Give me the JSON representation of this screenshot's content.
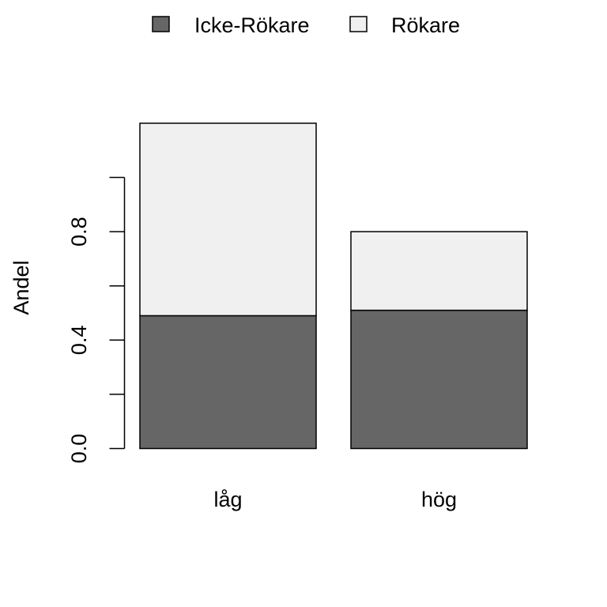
{
  "chart_data": {
    "type": "bar",
    "stacked": true,
    "categories": [
      "låg",
      "hög"
    ],
    "series": [
      {
        "name": "Icke-Rökare",
        "values": [
          0.49,
          0.51
        ],
        "color": "#666666"
      },
      {
        "name": "Rökare",
        "values": [
          0.71,
          0.29
        ],
        "color": "#f0f0f0"
      }
    ],
    "ylabel": "Andel",
    "ylim": [
      0,
      1.2
    ],
    "y_ticks": [
      0.0,
      0.2,
      0.4,
      0.6,
      0.8,
      1.0
    ],
    "y_tick_labels": [
      "0.0",
      "",
      "0.4",
      "",
      "0.8",
      ""
    ],
    "grid": false,
    "legend_position": "top"
  }
}
